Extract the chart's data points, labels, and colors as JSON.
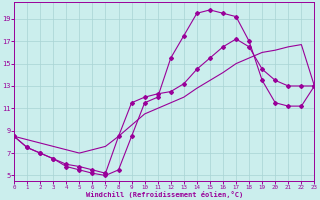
{
  "bg_color": "#cbeeed",
  "grid_color": "#a8d4d4",
  "line_color": "#990099",
  "xlabel": "Windchill (Refroidissement éolien,°C)",
  "xlim": [
    0,
    23
  ],
  "ylim": [
    4.5,
    20.5
  ],
  "xticks": [
    0,
    1,
    2,
    3,
    4,
    5,
    6,
    7,
    8,
    9,
    10,
    11,
    12,
    13,
    14,
    15,
    16,
    17,
    18,
    19,
    20,
    21,
    22,
    23
  ],
  "yticks": [
    5,
    7,
    9,
    11,
    13,
    15,
    17,
    19
  ],
  "curve1_x": [
    0,
    1,
    2,
    3,
    4,
    5,
    6,
    7,
    8,
    9,
    10,
    11,
    12,
    13,
    14,
    15,
    16,
    17,
    18,
    19,
    20,
    21,
    22,
    23
  ],
  "curve1_y": [
    8.5,
    7.5,
    7.0,
    6.5,
    5.8,
    5.5,
    5.2,
    5.0,
    5.5,
    8.5,
    11.5,
    12.0,
    15.5,
    17.5,
    19.5,
    19.8,
    19.5,
    19.2,
    17.0,
    13.5,
    11.5,
    11.2,
    11.2,
    13.0
  ],
  "curve2_x": [
    0,
    1,
    2,
    3,
    4,
    5,
    6,
    7,
    8,
    9,
    10,
    11,
    12,
    13,
    14,
    15,
    16,
    17,
    18,
    19,
    20,
    21,
    22,
    23
  ],
  "curve2_y": [
    8.5,
    7.5,
    7.0,
    6.5,
    6.0,
    5.8,
    5.5,
    5.2,
    8.5,
    11.5,
    12.0,
    12.3,
    12.5,
    13.2,
    14.5,
    15.5,
    16.5,
    17.2,
    16.5,
    14.5,
    13.5,
    13.0,
    13.0,
    13.0
  ],
  "line3_x": [
    0,
    1,
    2,
    3,
    4,
    5,
    6,
    7,
    8,
    9,
    10,
    11,
    12,
    13,
    14,
    15,
    16,
    17,
    18,
    19,
    20,
    21,
    22,
    23
  ],
  "line3_y": [
    8.5,
    8.2,
    7.9,
    7.6,
    7.3,
    7.0,
    7.3,
    7.6,
    8.5,
    9.5,
    10.5,
    11.0,
    11.5,
    12.0,
    12.8,
    13.5,
    14.2,
    15.0,
    15.5,
    16.0,
    16.2,
    16.5,
    16.7,
    13.0
  ]
}
